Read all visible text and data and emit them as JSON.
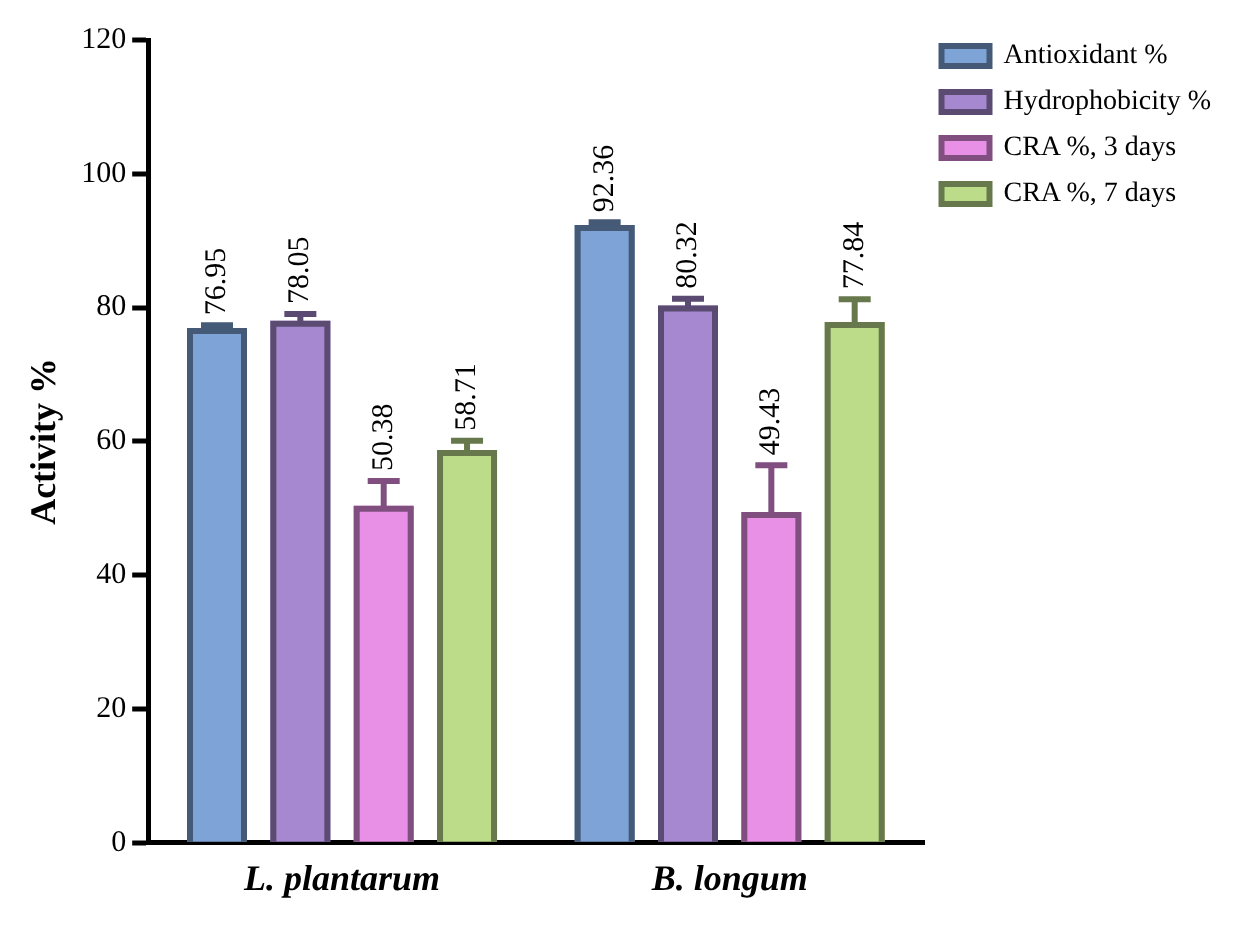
{
  "chart_data": {
    "type": "bar",
    "ylabel": "Activity %",
    "categories": [
      "L. plantarum",
      "B. longum"
    ],
    "series": [
      {
        "name": "Antioxidant %",
        "color": "#7ea3d6",
        "values": [
          76.95,
          92.36
        ],
        "errors": [
          0.4,
          0.4
        ]
      },
      {
        "name": "Hydrophobicity %",
        "color": "#a688d0",
        "values": [
          78.05,
          80.32
        ],
        "errors": [
          1,
          1
        ]
      },
      {
        "name": "CRA %, 3 days",
        "color": "#e890e6",
        "values": [
          50.38,
          49.43
        ],
        "errors": [
          3.7,
          7
        ]
      },
      {
        "name": "CRA %, 7 days",
        "color": "#bcdc8a",
        "values": [
          58.71,
          77.84
        ],
        "errors": [
          1.4,
          3.4
        ]
      }
    ],
    "ylim": [
      0,
      120
    ],
    "yticks": [
      0,
      20,
      40,
      60,
      80,
      100,
      120
    ],
    "grid": false,
    "legend": "top right",
    "data_labels": true
  }
}
